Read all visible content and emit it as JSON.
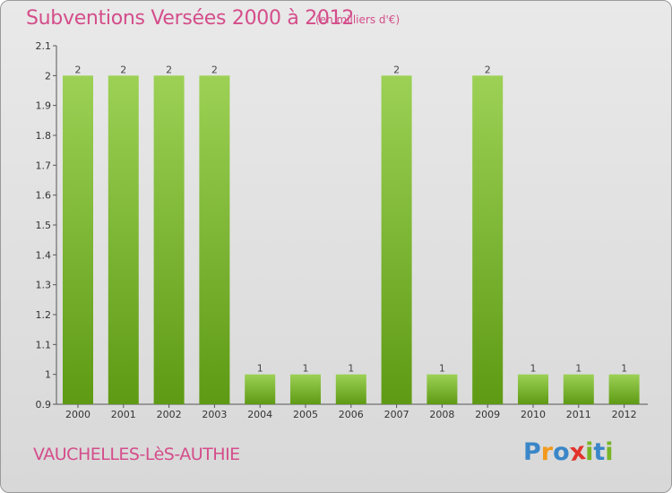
{
  "title": "Subventions Versées 2000 à 2012",
  "subtitle": "(en milliers d'€)",
  "commune": "VAUCHELLES-LèS-AUTHIE",
  "brand": {
    "letters": [
      "P",
      "r",
      "o",
      "x",
      "i",
      "t",
      "i"
    ],
    "colors": [
      "#3a86c8",
      "#f29a1f",
      "#3a86c8",
      "#e2342c",
      "#78b527",
      "#3a86c8",
      "#78b527"
    ]
  },
  "colors": {
    "bar_top": "#9cd155",
    "bar_bottom": "#5e9a14",
    "text_pink": "#d44d8a"
  },
  "chart_data": {
    "type": "bar",
    "categories": [
      "2000",
      "2001",
      "2002",
      "2003",
      "2004",
      "2005",
      "2006",
      "2007",
      "2008",
      "2009",
      "2010",
      "2011",
      "2012"
    ],
    "values": [
      2,
      2,
      2,
      2,
      1,
      1,
      1,
      2,
      1,
      2,
      1,
      1,
      1
    ],
    "data_labels": [
      "2",
      "2",
      "2",
      "2",
      "1",
      "1",
      "1",
      "2",
      "1",
      "2",
      "1",
      "1",
      "1"
    ],
    "yticks": [
      0.9,
      1,
      1.1,
      1.2,
      1.3,
      1.4,
      1.5,
      1.6,
      1.7,
      1.8,
      1.9,
      2,
      2.1
    ],
    "ytick_labels": [
      "0.9",
      "1",
      "1.1",
      "1.2",
      "1.3",
      "1.4",
      "1.5",
      "1.6",
      "1.7",
      "1.8",
      "1.9",
      "2",
      "2.1"
    ],
    "ylim": [
      0.9,
      2.1
    ],
    "grid": false
  }
}
